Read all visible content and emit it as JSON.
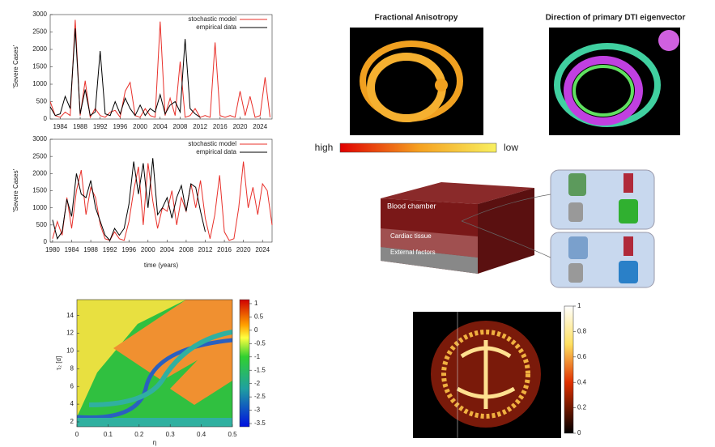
{
  "chart_data": [
    {
      "type": "line",
      "ylabel": "'Severe Cases'",
      "x": [
        1982,
        1983,
        1984,
        1985,
        1986,
        1987,
        1988,
        1989,
        1990,
        1991,
        1992,
        1993,
        1994,
        1995,
        1996,
        1997,
        1998,
        1999,
        2000,
        2001,
        2002,
        2003,
        2004,
        2005,
        2006,
        2007,
        2008,
        2009,
        2010,
        2011,
        2012,
        2013,
        2014,
        2015,
        2016,
        2017,
        2018,
        2019,
        2020,
        2021,
        2022,
        2023,
        2024,
        2025,
        2026
      ],
      "series": [
        {
          "name": "stochastic model",
          "color": "#e8302a",
          "values": [
            500,
            100,
            50,
            200,
            100,
            2850,
            100,
            1100,
            50,
            300,
            100,
            50,
            200,
            250,
            50,
            800,
            1050,
            100,
            50,
            300,
            100,
            50,
            2800,
            100,
            600,
            100,
            1650,
            50,
            100,
            300,
            50,
            100,
            50,
            2200,
            100,
            50,
            100,
            50,
            800,
            100,
            650,
            50,
            100,
            1200,
            50
          ]
        },
        {
          "name": "empirical data",
          "color": "#000000",
          "values": [
            350,
            100,
            150,
            650,
            300,
            2600,
            150,
            850,
            100,
            200,
            1950,
            150,
            100,
            500,
            150,
            600,
            300,
            100,
            400,
            100,
            300,
            200,
            700,
            150,
            400,
            500,
            200,
            2300,
            300,
            150,
            50,
            null,
            null,
            null,
            null,
            null,
            null,
            null,
            null,
            null,
            null,
            null,
            null,
            null,
            null
          ]
        }
      ],
      "xlim": [
        1982,
        2026.4
      ],
      "ylim": [
        0,
        3000
      ],
      "xticks": [
        1984,
        1988,
        1992,
        1996,
        2000,
        2004,
        2008,
        2012,
        2016,
        2020,
        2024
      ],
      "yticks": [
        0,
        500,
        1000,
        1500,
        2000,
        2500,
        3000
      ]
    },
    {
      "type": "line",
      "ylabel": "'Severe Cases'",
      "xlabel": "time (years)",
      "x": [
        1980,
        1981,
        1982,
        1983,
        1984,
        1985,
        1986,
        1987,
        1988,
        1989,
        1990,
        1991,
        1992,
        1993,
        1994,
        1995,
        1996,
        1997,
        1998,
        1999,
        2000,
        2001,
        2002,
        2003,
        2004,
        2005,
        2006,
        2007,
        2008,
        2009,
        2010,
        2011,
        2012,
        2013,
        2014,
        2015,
        2016,
        2017,
        2018,
        2019,
        2020,
        2021,
        2022,
        2023,
        2024,
        2025,
        2026
      ],
      "series": [
        {
          "name": "stochastic model",
          "color": "#e8302a",
          "values": [
            100,
            600,
            200,
            1300,
            400,
            1500,
            2100,
            800,
            1600,
            1300,
            500,
            100,
            50,
            300,
            100,
            50,
            600,
            1500,
            2200,
            500,
            2300,
            1200,
            400,
            1000,
            900,
            1500,
            500,
            1300,
            900,
            1700,
            1000,
            1800,
            700,
            100,
            800,
            1950,
            300,
            50,
            100,
            1000,
            2350,
            1000,
            1600,
            800,
            1700,
            1500,
            500
          ]
        },
        {
          "name": "empirical data",
          "color": "#000000",
          "values": [
            650,
            100,
            300,
            1250,
            750,
            2000,
            1400,
            1300,
            1800,
            1000,
            600,
            200,
            50,
            400,
            200,
            400,
            1100,
            2350,
            1400,
            2300,
            1000,
            2450,
            800,
            1000,
            1300,
            700,
            1300,
            1650,
            900,
            1700,
            1600,
            900,
            300,
            null,
            null,
            null,
            null,
            null,
            null,
            null,
            null,
            null,
            null,
            null,
            null,
            null,
            null
          ]
        }
      ],
      "xlim": [
        1979.5,
        2026
      ],
      "ylim": [
        0,
        3000
      ],
      "xticks": [
        1980,
        1984,
        1988,
        1992,
        1996,
        2000,
        2004,
        2008,
        2012,
        2016,
        2020,
        2024
      ],
      "yticks": [
        0,
        500,
        1000,
        1500,
        2000,
        2500,
        3000
      ]
    },
    {
      "type": "heatmap",
      "xlabel": "η",
      "ylabel": "τ₂ [d]",
      "xlim": [
        0,
        0.5
      ],
      "ylim": [
        1.45,
        15.8
      ],
      "xticks": [
        0,
        0.1,
        0.2,
        0.3,
        0.4,
        0.5
      ],
      "yticks": [
        2,
        4,
        6,
        8,
        10,
        12,
        14
      ],
      "clim": [
        -3.62,
        1.15
      ],
      "cticks": [
        1,
        0.5,
        0,
        -0.5,
        -1,
        -1.5,
        -2,
        -2.5,
        -3,
        -3.5
      ]
    }
  ],
  "heart": {
    "title_left": "Fractional Anisotropy",
    "title_right": "Direction of primary DTI eigenvector",
    "scale_high": "high",
    "scale_low": "low"
  },
  "diagram": {
    "layers": [
      "Blood chamber",
      "Cardiac tissue",
      "External factors"
    ]
  },
  "brain": {
    "type": "colorbar",
    "clim": [
      0,
      1
    ],
    "cticks": [
      1,
      0.8,
      0.6,
      0.4,
      0.2,
      0
    ]
  }
}
